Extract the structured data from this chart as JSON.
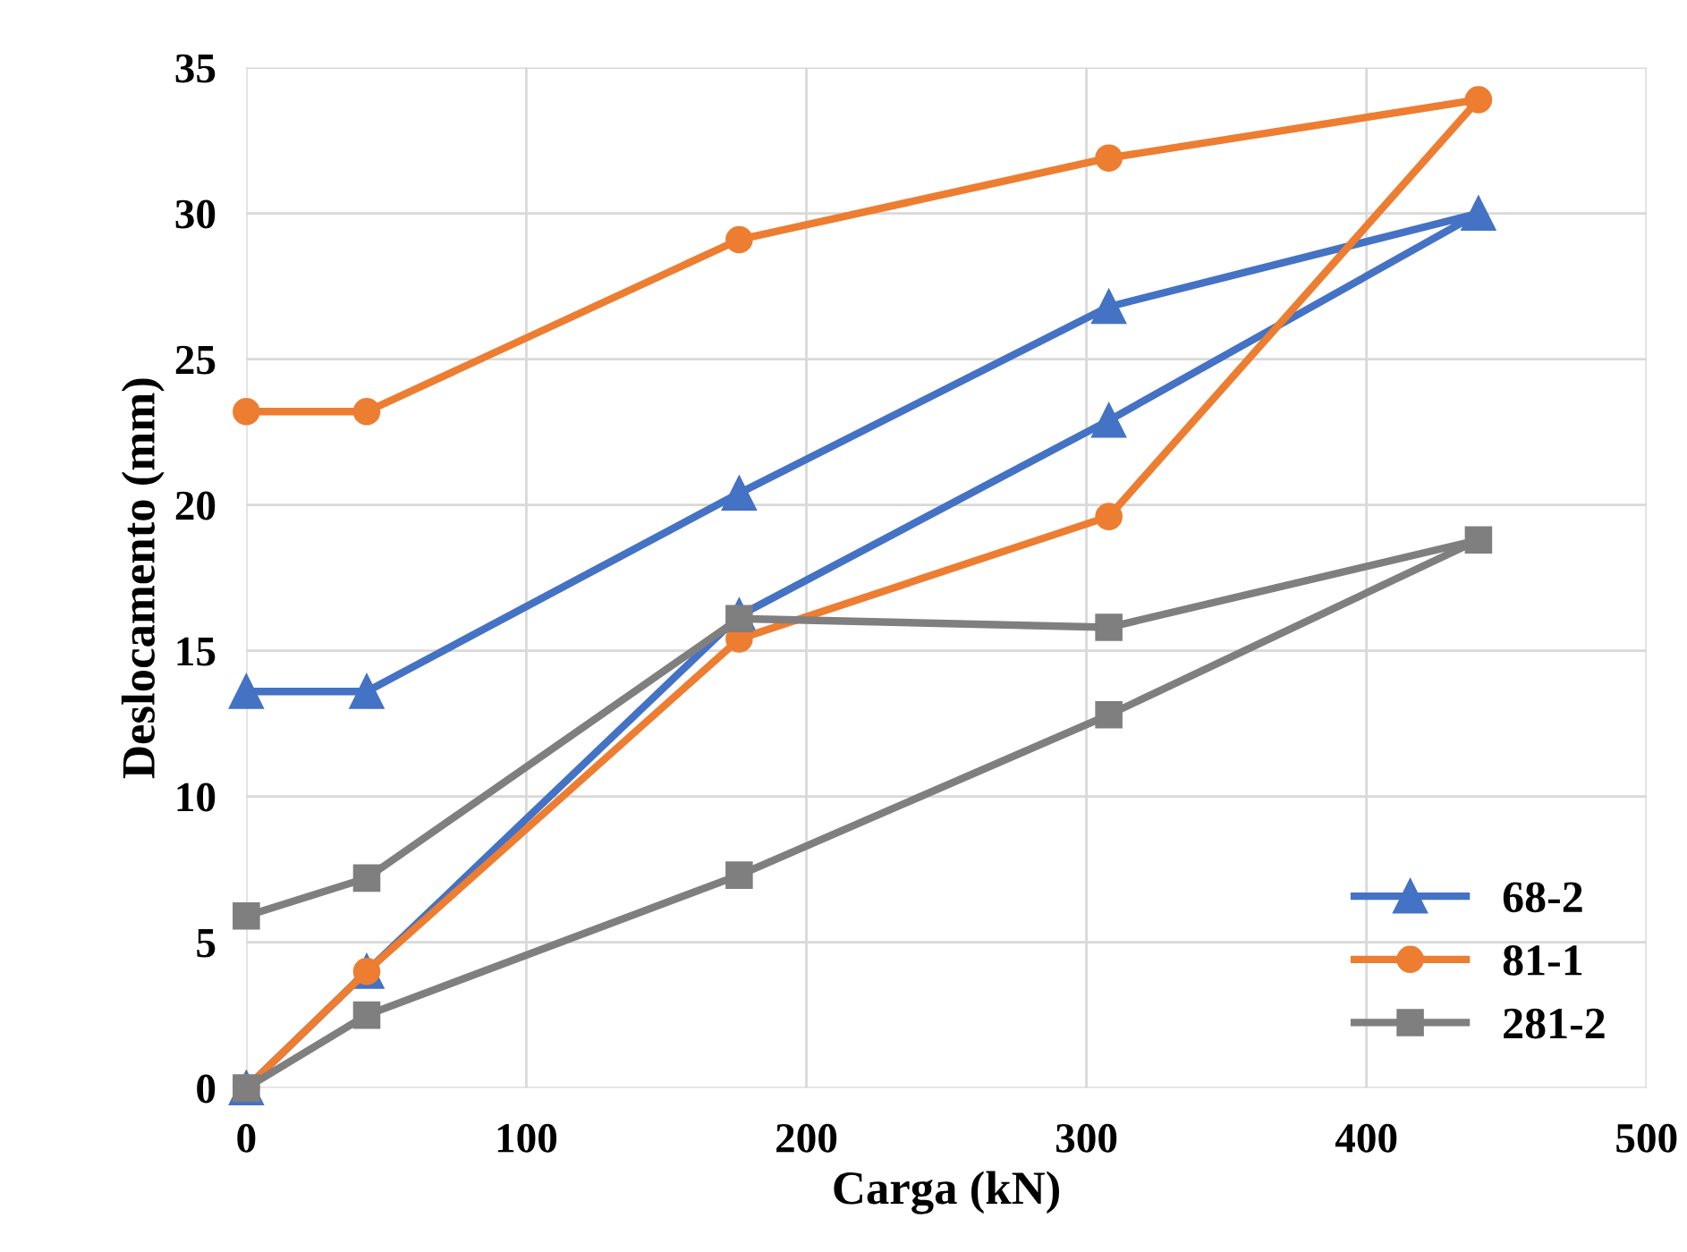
{
  "chart_data": {
    "type": "line",
    "xlabel": "Carga (kN)",
    "ylabel": "Deslocamento (mm)",
    "xlim": [
      0,
      500
    ],
    "xticks": [
      0,
      100,
      200,
      300,
      400,
      500
    ],
    "ylim": [
      0,
      35
    ],
    "yticks": [
      0,
      5,
      10,
      15,
      20,
      25,
      30,
      35
    ],
    "grid": true,
    "legend": "bottom right",
    "line_style": "solid",
    "series": [
      {
        "name": "68-2",
        "color": "#4472c4",
        "marker": "triangle",
        "x": [
          0,
          43,
          176,
          308,
          440,
          308,
          176,
          43,
          0
        ],
        "values": [
          0,
          4.0,
          16.2,
          22.9,
          30.0,
          26.8,
          20.4,
          13.6,
          13.6
        ]
      },
      {
        "name": "81-1",
        "color": "#ed7d31",
        "marker": "circle",
        "x": [
          0,
          43,
          176,
          308,
          440,
          308,
          176,
          43,
          0
        ],
        "values": [
          0,
          4.0,
          15.4,
          19.6,
          33.9,
          31.9,
          29.1,
          23.2,
          23.2
        ]
      },
      {
        "name": "281-2",
        "color": "#7f7f7f",
        "marker": "square",
        "x": [
          0,
          43,
          176,
          308,
          440,
          308,
          176,
          43,
          0
        ],
        "values": [
          0,
          2.5,
          7.3,
          12.8,
          18.8,
          15.8,
          16.1,
          7.2,
          5.9
        ]
      }
    ]
  }
}
